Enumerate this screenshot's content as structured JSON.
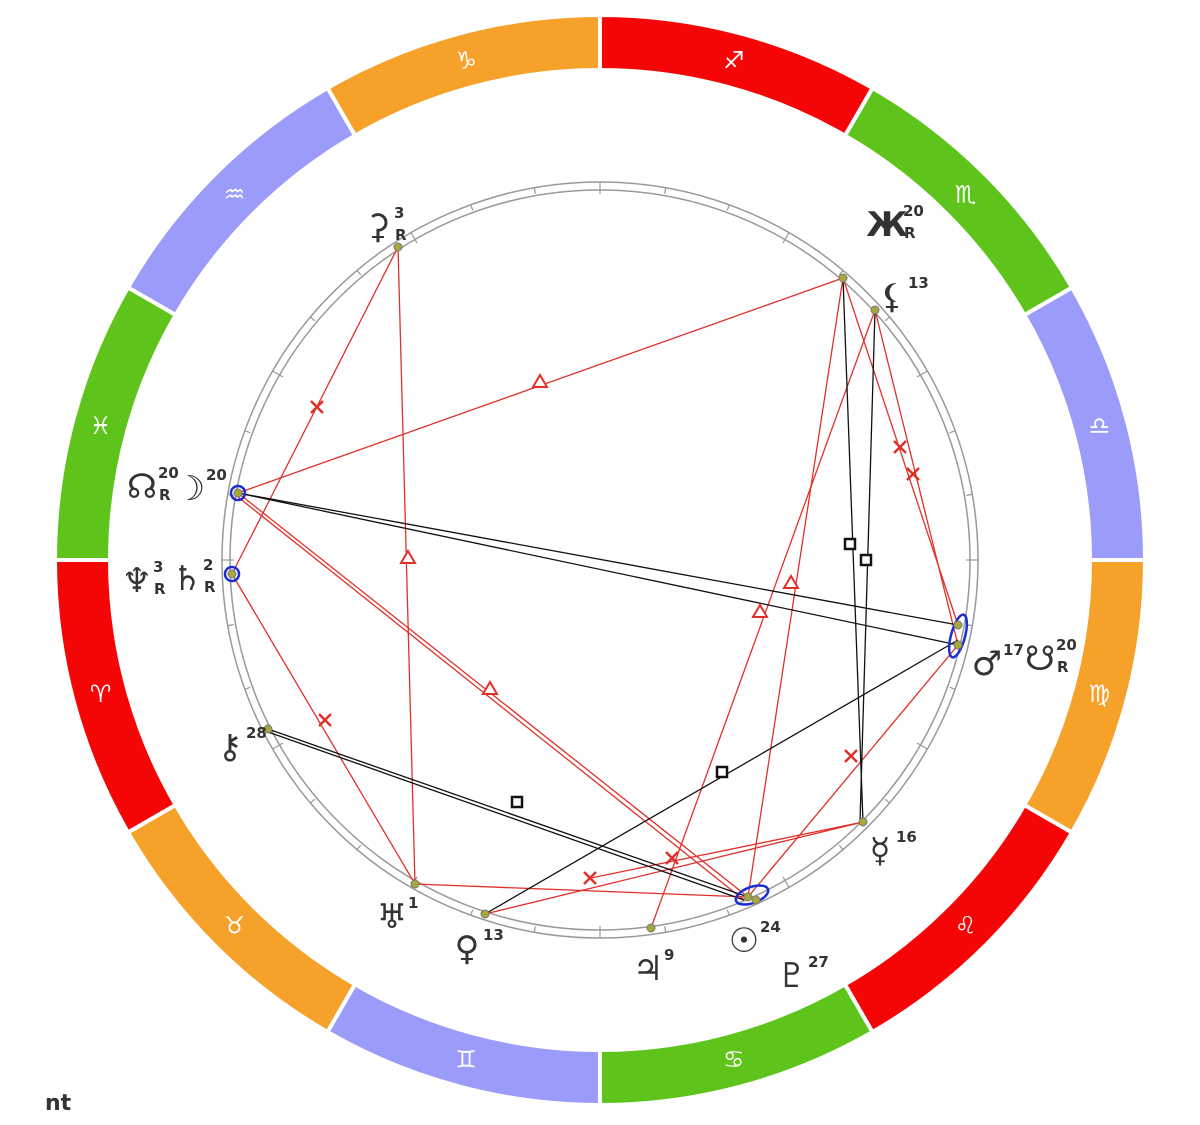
{
  "zodiac": [
    {
      "sign": "♑",
      "color": "#f5a12a"
    },
    {
      "sign": "♒",
      "color": "#9b9bfa"
    },
    {
      "sign": "♓",
      "color": "#5ec41c"
    },
    {
      "sign": "♈",
      "color": "#f50505"
    },
    {
      "sign": "♉",
      "color": "#f5a12a"
    },
    {
      "sign": "♊",
      "color": "#9b9bfa"
    },
    {
      "sign": "♋",
      "color": "#5ec41c"
    },
    {
      "sign": "♌",
      "color": "#f50505"
    },
    {
      "sign": "♍",
      "color": "#f5a12a"
    },
    {
      "sign": "♎",
      "color": "#9b9bfa"
    },
    {
      "sign": "♏",
      "color": "#5ec41c"
    },
    {
      "sign": "♐",
      "color": "#f50505"
    }
  ],
  "planets": [
    {
      "glyph": "⚳",
      "degree": 3,
      "retrograde": "R"
    },
    {
      "glyph": "Ж",
      "degree": 20,
      "retrograde": "R"
    },
    {
      "glyph": "⚸",
      "degree": 13
    },
    {
      "glyph": "☊",
      "degree": 20,
      "retrograde": "R"
    },
    {
      "glyph": "☽",
      "degree": 20
    },
    {
      "glyph": "♆",
      "degree": 3,
      "retrograde": "R"
    },
    {
      "glyph": "♄",
      "degree": 2,
      "retrograde": "R"
    },
    {
      "glyph": "⚷",
      "degree": 28
    },
    {
      "glyph": "♅",
      "degree": 1
    },
    {
      "glyph": "♀",
      "degree": 13
    },
    {
      "glyph": "♃",
      "degree": 9
    },
    {
      "glyph": "☉",
      "degree": 24
    },
    {
      "glyph": "♇",
      "degree": 27
    },
    {
      "glyph": "♂",
      "degree": 17
    },
    {
      "glyph": "☋",
      "degree": 20,
      "retrograde": "R"
    },
    {
      "glyph": "☿",
      "degree": 16
    }
  ],
  "footer": "nt"
}
